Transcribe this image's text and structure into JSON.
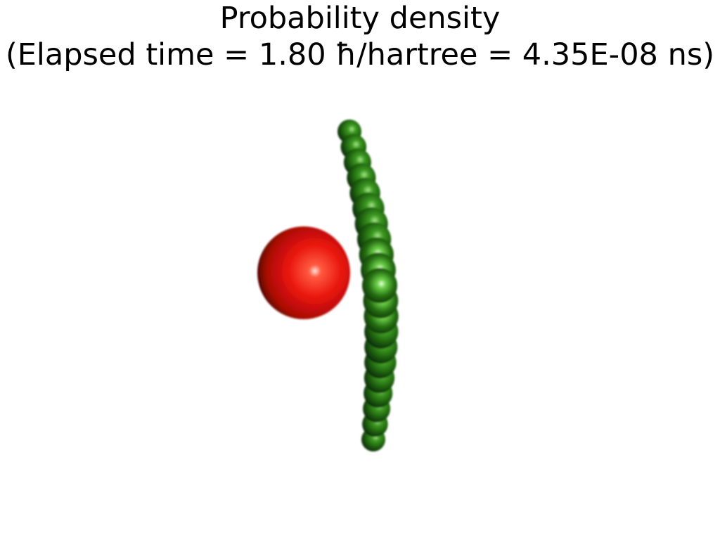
{
  "figure": {
    "title_line1": "Probability density",
    "title_line2": "(Elapsed time = 1.80 ħ/hartree = 4.35E-08 ns)"
  },
  "colors": {
    "background": "#ffffff",
    "red_sphere": "#e8140c",
    "green_chain": "#1f6d10"
  },
  "scene_objects": {
    "red_sphere_count": 1,
    "green_sphere_count": 21
  }
}
